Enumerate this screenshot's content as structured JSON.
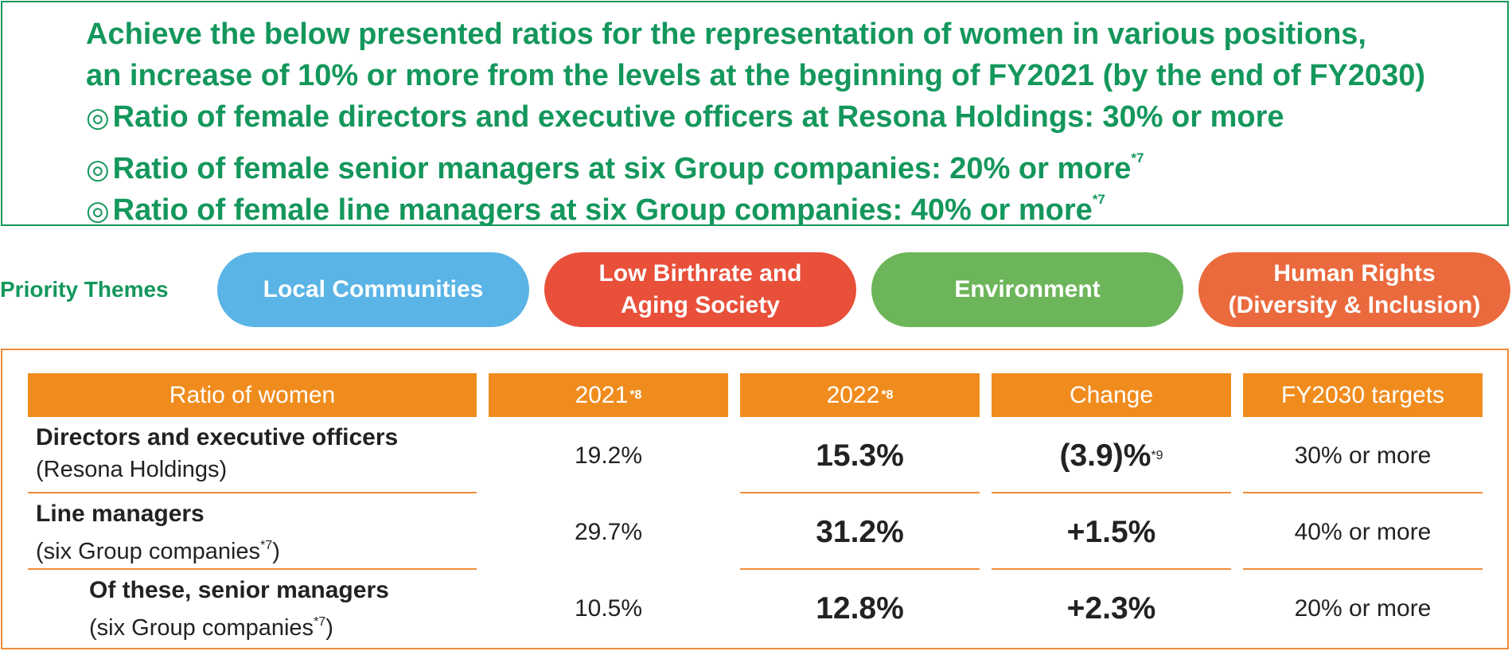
{
  "goal": {
    "line1": "Achieve the below presented ratios for the representation of women in various positions,",
    "line2": "an increase of 10% or more from the levels at the beginning of FY2021 (by the end of FY2030)",
    "bullet_symbol": "◎",
    "bullets": [
      {
        "text": "Ratio of female directors and executive officers at Resona Holdings: 30% or more",
        "note": ""
      },
      {
        "text": "Ratio of female senior managers at six Group companies: 20% or more",
        "note": "*7"
      },
      {
        "text": "Ratio of female line managers at six Group companies: 40% or more",
        "note": "*7"
      }
    ],
    "color": "#14975c"
  },
  "priority_themes": {
    "label": "Priority Themes",
    "items": [
      {
        "line1": "Local Communities",
        "line2": "",
        "color": "#5ab4e6"
      },
      {
        "line1": "Low Birthrate and",
        "line2": "Aging Society",
        "color": "#e8503a"
      },
      {
        "line1": "Environment",
        "line2": "",
        "color": "#6db55a"
      },
      {
        "line1": "Human Rights",
        "line2": "(Diversity & Inclusion)",
        "color": "#ea6a3e"
      }
    ]
  },
  "table": {
    "header_color": "#f08c1e",
    "headers": [
      {
        "label": "Ratio of women",
        "note": ""
      },
      {
        "label": "2021",
        "note": "*8"
      },
      {
        "label": "2022",
        "note": "*8"
      },
      {
        "label": "Change",
        "note": ""
      },
      {
        "label": "FY2030 targets",
        "note": ""
      }
    ],
    "rows": [
      {
        "label": "Directors and executive officers",
        "sub": "(Resona Holdings)",
        "sub_note": "",
        "sub_tail": "",
        "y2021": "19.2%",
        "y2022": "15.3%",
        "change": "(3.9)%",
        "change_note": "*9",
        "target": "30% or more"
      },
      {
        "label": "Line managers",
        "sub": "(six Group companies",
        "sub_note": "*7",
        "sub_tail": ")",
        "y2021": "29.7%",
        "y2022": "31.2%",
        "change": "+1.5%",
        "change_note": "",
        "target": "40% or more"
      },
      {
        "label": "Of these, senior managers",
        "sub": "(six Group companies",
        "sub_note": "*7",
        "sub_tail": ")",
        "y2021": "10.5%",
        "y2022": "12.8%",
        "change": "+2.3%",
        "change_note": "",
        "target": "20% or more"
      }
    ]
  }
}
